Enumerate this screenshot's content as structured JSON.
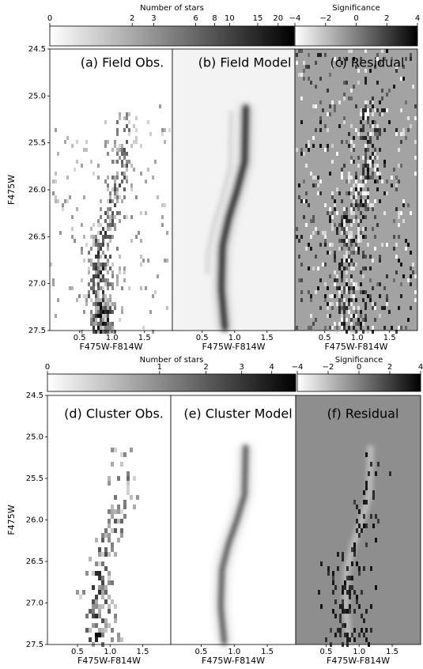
{
  "chart_data": [
    {
      "type": "hess",
      "colorbars": [
        {
          "label": "Number of stars",
          "scale": "log1p",
          "lim": [
            0,
            25
          ],
          "ticks": [
            0,
            2,
            3,
            6,
            8,
            10,
            15,
            20
          ]
        },
        {
          "label": "Significance",
          "scale": "linear",
          "lim": [
            -4,
            4
          ],
          "ticks": [
            {
              "value": -4,
              "label": "−4"
            },
            {
              "value": -2,
              "label": "−2"
            },
            0,
            2,
            4
          ]
        }
      ],
      "panels": [
        {
          "title": "(a) Field Obs.",
          "kind": "obs"
        },
        {
          "title": "(b) Field Model",
          "kind": "model"
        },
        {
          "title": "(c) Residual",
          "kind": "residual"
        }
      ],
      "ylabel": "F475W",
      "xlabel": "F475W-F814W",
      "ylim": [
        27.5,
        24.5
      ],
      "yticks": [
        24.5,
        {
          "value": 25,
          "label": "25.0"
        },
        25.5,
        {
          "value": 26,
          "label": "26.0"
        },
        26.5,
        {
          "value": 27,
          "label": "27.0"
        },
        27.5
      ],
      "xlim": [
        0.04,
        1.93
      ],
      "xticks": [
        0.5,
        {
          "value": 1,
          "label": "1.0"
        },
        1.5
      ]
    },
    {
      "type": "hess",
      "colorbars": [
        {
          "label": "Number of stars",
          "scale": "sqrt",
          "lim": [
            0,
            4.9
          ],
          "ticks": [
            0,
            1,
            2,
            3,
            4
          ]
        },
        {
          "label": "Significance",
          "scale": "linear",
          "lim": [
            -4,
            4
          ],
          "ticks": [
            {
              "value": -4,
              "label": "−4"
            },
            {
              "value": -2,
              "label": "−2"
            },
            0,
            2,
            4
          ]
        }
      ],
      "panels": [
        {
          "title": "(d) Cluster Obs.",
          "kind": "obs-sparse"
        },
        {
          "title": "(e) Cluster Model",
          "kind": "model-clean"
        },
        {
          "title": "(f) Residual",
          "kind": "residual-sparse"
        }
      ],
      "ylabel": "F475W",
      "xlabel": "F475W-F814W",
      "ylim": [
        27.5,
        24.5
      ],
      "yticks": [
        24.5,
        {
          "value": 25,
          "label": "25.0"
        },
        25.5,
        {
          "value": 26,
          "label": "26.0"
        },
        26.5,
        {
          "value": 27,
          "label": "27.0"
        },
        27.5
      ],
      "xlim": [
        0.04,
        1.93
      ],
      "xticks": [
        0.5,
        {
          "value": 1,
          "label": "1.0"
        },
        1.5
      ]
    }
  ]
}
